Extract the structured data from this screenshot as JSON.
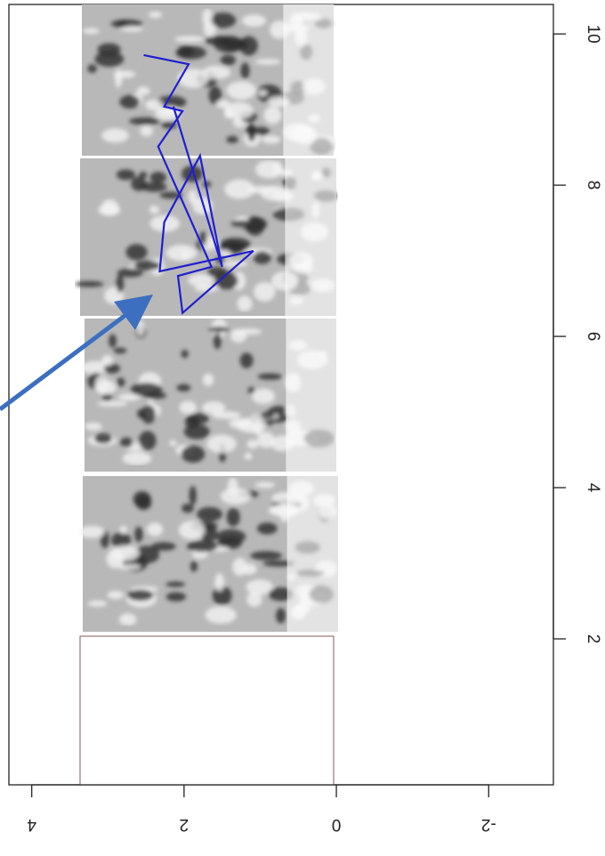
{
  "chart_data": {
    "type": "line",
    "x": [
      9.72,
      9.6,
      9.04,
      8.98,
      8.51,
      6.92,
      6.8,
      6.31,
      7.13,
      6.86,
      7.51,
      8.39,
      6.92,
      9.04
    ],
    "series": [
      {
        "color": "#1f1fd0",
        "values": [
          2.53,
          1.94,
          2.26,
          2.02,
          2.34,
          1.64,
          2.08,
          2.02,
          1.09,
          2.32,
          2.26,
          1.79,
          1.5,
          2.14
        ]
      }
    ],
    "xlim": [
      0.07,
      10.39
    ],
    "xticks": [
      2,
      4,
      6,
      8,
      10
    ],
    "ylim": [
      -2.85,
      4.3
    ],
    "yticks": [
      4,
      2,
      0,
      -2
    ]
  }
}
